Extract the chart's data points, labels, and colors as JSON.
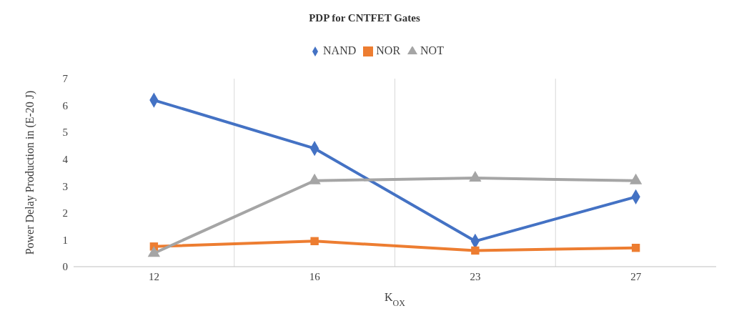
{
  "chart_data": {
    "type": "line",
    "title": "PDP for CNTFET Gates",
    "xlabel": "K$_{OX}$",
    "ylabel": "Power Delay Production in (E-20 J)",
    "categories": [
      "12",
      "16",
      "23",
      "27"
    ],
    "series": [
      {
        "name": "NAND",
        "color": "#4472c4",
        "marker": "diamond",
        "values": [
          6.2,
          4.4,
          0.95,
          2.6
        ]
      },
      {
        "name": "NOR",
        "color": "#ed7d31",
        "marker": "square",
        "values": [
          0.75,
          0.95,
          0.6,
          0.7
        ]
      },
      {
        "name": "NOT",
        "color": "#a5a5a5",
        "marker": "triangle",
        "values": [
          0.5,
          3.2,
          3.3,
          3.2
        ]
      }
    ],
    "ylim": [
      0,
      7
    ],
    "yticks": [
      0,
      1,
      2,
      3,
      4,
      5,
      6,
      7
    ],
    "grid": "x",
    "legend": "top",
    "line_style": "solid"
  }
}
